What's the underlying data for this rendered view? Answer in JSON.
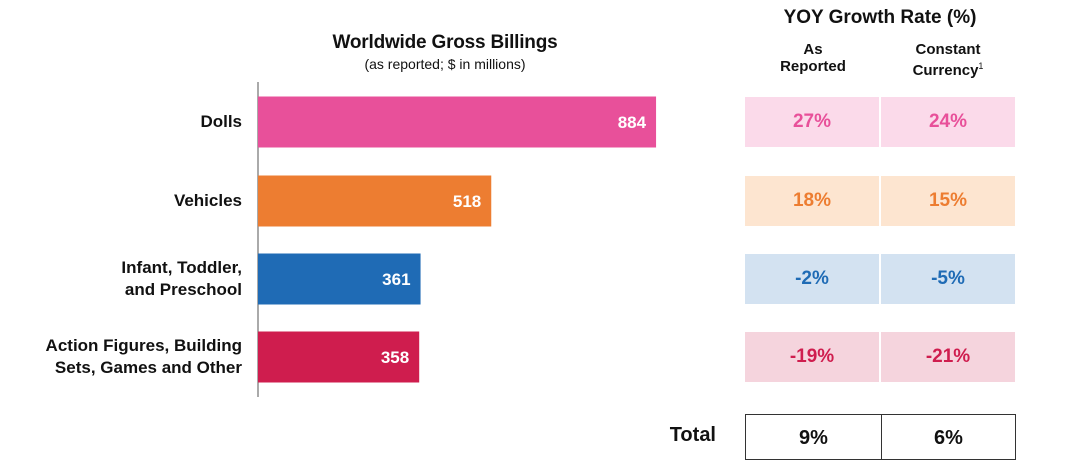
{
  "chart_data": {
    "type": "bar",
    "orientation": "horizontal",
    "title": "Worldwide Gross Billings",
    "subtitle": "(as reported; $ in millions)",
    "categories": [
      "Dolls",
      "Vehicles",
      "Infant, Toddler, and Preschool",
      "Action Figures, Building Sets, Games and Other"
    ],
    "category_lines": [
      [
        "Dolls"
      ],
      [
        "Vehicles"
      ],
      [
        "Infant, Toddler,",
        "and Preschool"
      ],
      [
        "Action Figures, Building",
        "Sets, Games and Other"
      ]
    ],
    "values": [
      884,
      518,
      361,
      358
    ],
    "value_labels": [
      "884",
      "518",
      "361",
      "358"
    ],
    "bar_colors": [
      "#e8509a",
      "#ed7d31",
      "#1f6bb5",
      "#cf1d4e"
    ],
    "xlim": [
      0,
      900
    ],
    "grid": false
  },
  "yoy_table": {
    "title": "YOY Growth Rate (%)",
    "columns": [
      {
        "label_lines": [
          "As",
          "Reported"
        ]
      },
      {
        "label_lines": [
          "Constant",
          "Currency"
        ],
        "footnote": "1"
      }
    ],
    "rows": [
      {
        "reported": "27%",
        "constant": "24%",
        "bg": "#fbdaea",
        "fg": "#e8509a"
      },
      {
        "reported": "18%",
        "constant": "15%",
        "bg": "#fde5d0",
        "fg": "#ed7d31"
      },
      {
        "reported": "-2%",
        "constant": "-5%",
        "bg": "#d3e2f1",
        "fg": "#1f6bb5"
      },
      {
        "reported": "-19%",
        "constant": "-21%",
        "bg": "#f5d4dd",
        "fg": "#cf1d4e"
      }
    ],
    "total": {
      "label": "Total",
      "reported": "9%",
      "constant": "6%"
    }
  }
}
